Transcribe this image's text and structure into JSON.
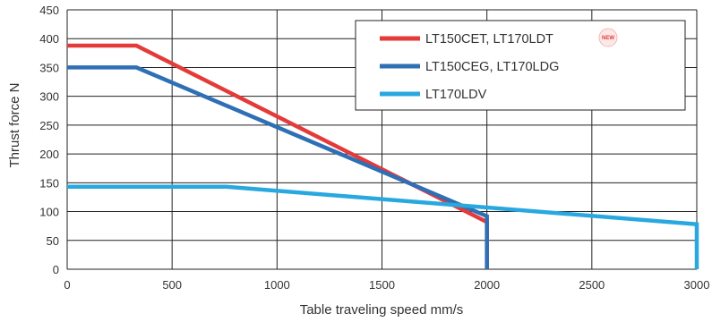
{
  "chart_data": {
    "type": "line",
    "title": "",
    "xlabel": "Table traveling speed mm/s",
    "ylabel": "Thrust force N",
    "xlim": [
      0,
      3000
    ],
    "ylim": [
      0,
      450
    ],
    "xticks": [
      0,
      500,
      1000,
      1500,
      2000,
      2500,
      3000
    ],
    "yticks": [
      0,
      50,
      100,
      150,
      200,
      250,
      300,
      350,
      400,
      450
    ],
    "grid": true,
    "legend_position": "top-right",
    "series": [
      {
        "name": "LT150CET, LT170LDT",
        "color": "#e53a3a",
        "badge": "NEW",
        "x": [
          0,
          330,
          2000,
          2000
        ],
        "y": [
          388,
          388,
          82,
          0
        ]
      },
      {
        "name": "LT150CEG, LT170LDG",
        "color": "#2e6fb5",
        "x": [
          0,
          330,
          2000,
          2000
        ],
        "y": [
          350,
          350,
          92,
          0
        ]
      },
      {
        "name": "LT170LDV",
        "color": "#29a8df",
        "x": [
          0,
          760,
          3000,
          3000
        ],
        "y": [
          143,
          143,
          78,
          0
        ]
      }
    ]
  }
}
